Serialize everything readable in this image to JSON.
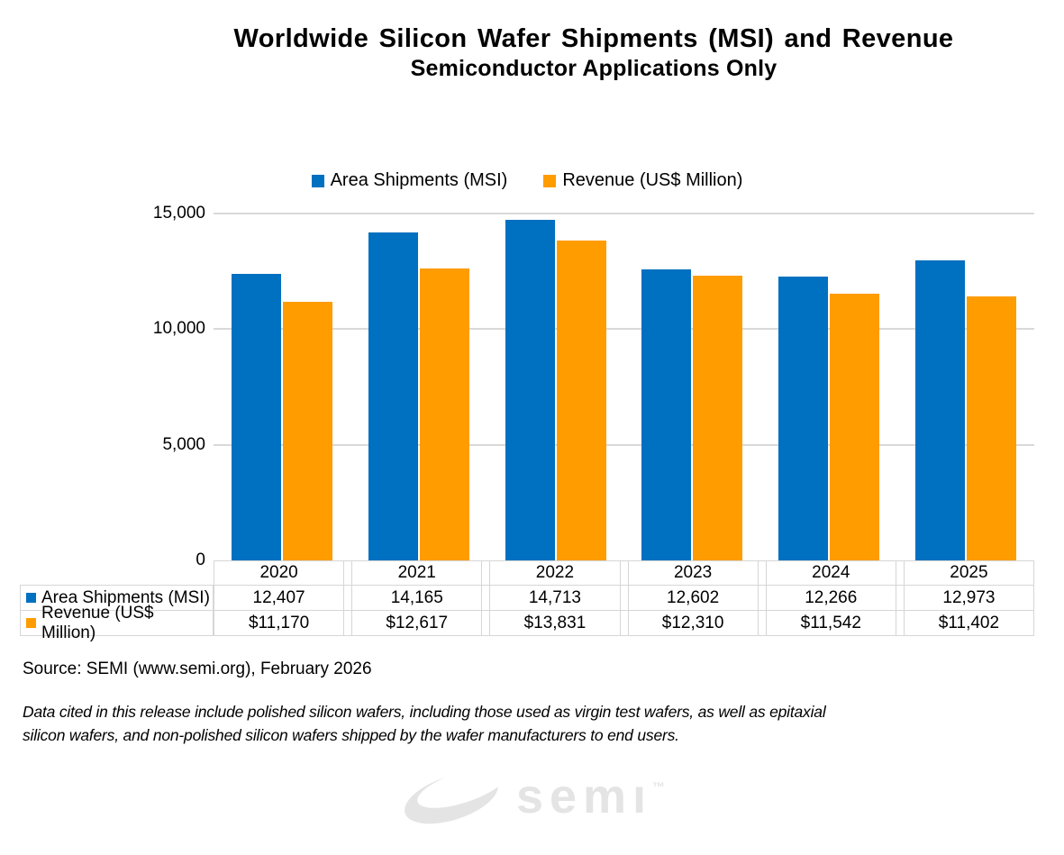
{
  "header": {
    "title": "Worldwide Silicon Wafer Shipments (MSI) and Revenue",
    "subtitle": "Semiconductor Applications Only"
  },
  "legend": {
    "items": [
      {
        "label": "Area Shipments (MSI)",
        "color": "#0070C0"
      },
      {
        "label": "Revenue (US$ Million)",
        "color": "#FF9C00"
      }
    ]
  },
  "chart_data": {
    "type": "bar",
    "title": "Worldwide Silicon Wafer Shipments (MSI) and Revenue",
    "subtitle": "Semiconductor Applications Only",
    "categories": [
      "2020",
      "2021",
      "2022",
      "2023",
      "2024",
      "2025"
    ],
    "series": [
      {
        "name": "Area Shipments (MSI)",
        "color": "#0070C0",
        "values": [
          12407,
          14165,
          14713,
          12602,
          12266,
          12973
        ],
        "formatted": [
          "12,407",
          "14,165",
          "14,713",
          "12,602",
          "12,266",
          "12,973"
        ]
      },
      {
        "name": "Revenue (US$ Million)",
        "color": "#FF9C00",
        "values": [
          11170,
          12617,
          13831,
          12310,
          11542,
          11402
        ],
        "formatted": [
          "$11,170",
          "$12,617",
          "$13,831",
          "$12,310",
          "$11,542",
          "$11,402"
        ]
      }
    ],
    "ylim": [
      0,
      15000
    ],
    "yticks": [
      {
        "value": 15000,
        "label": "15,000"
      },
      {
        "value": 10000,
        "label": "10,000"
      },
      {
        "value": 5000,
        "label": "5,000"
      },
      {
        "value": 0,
        "label": "0"
      }
    ],
    "grid": true,
    "gridline_color": "#D9D9D9",
    "legend_position": "top",
    "data_table_shown": true
  },
  "source": {
    "text": "Source: SEMI (www.semi.org), February 2026"
  },
  "footnote": {
    "line1": "Data cited in this release include polished silicon wafers, including those used as virgin test wafers, as well as epitaxial",
    "line2": "silicon wafers, and non-polished silicon wafers shipped by the wafer manufacturers to end users."
  },
  "logo": {
    "text": "semı",
    "trademark": "™"
  }
}
